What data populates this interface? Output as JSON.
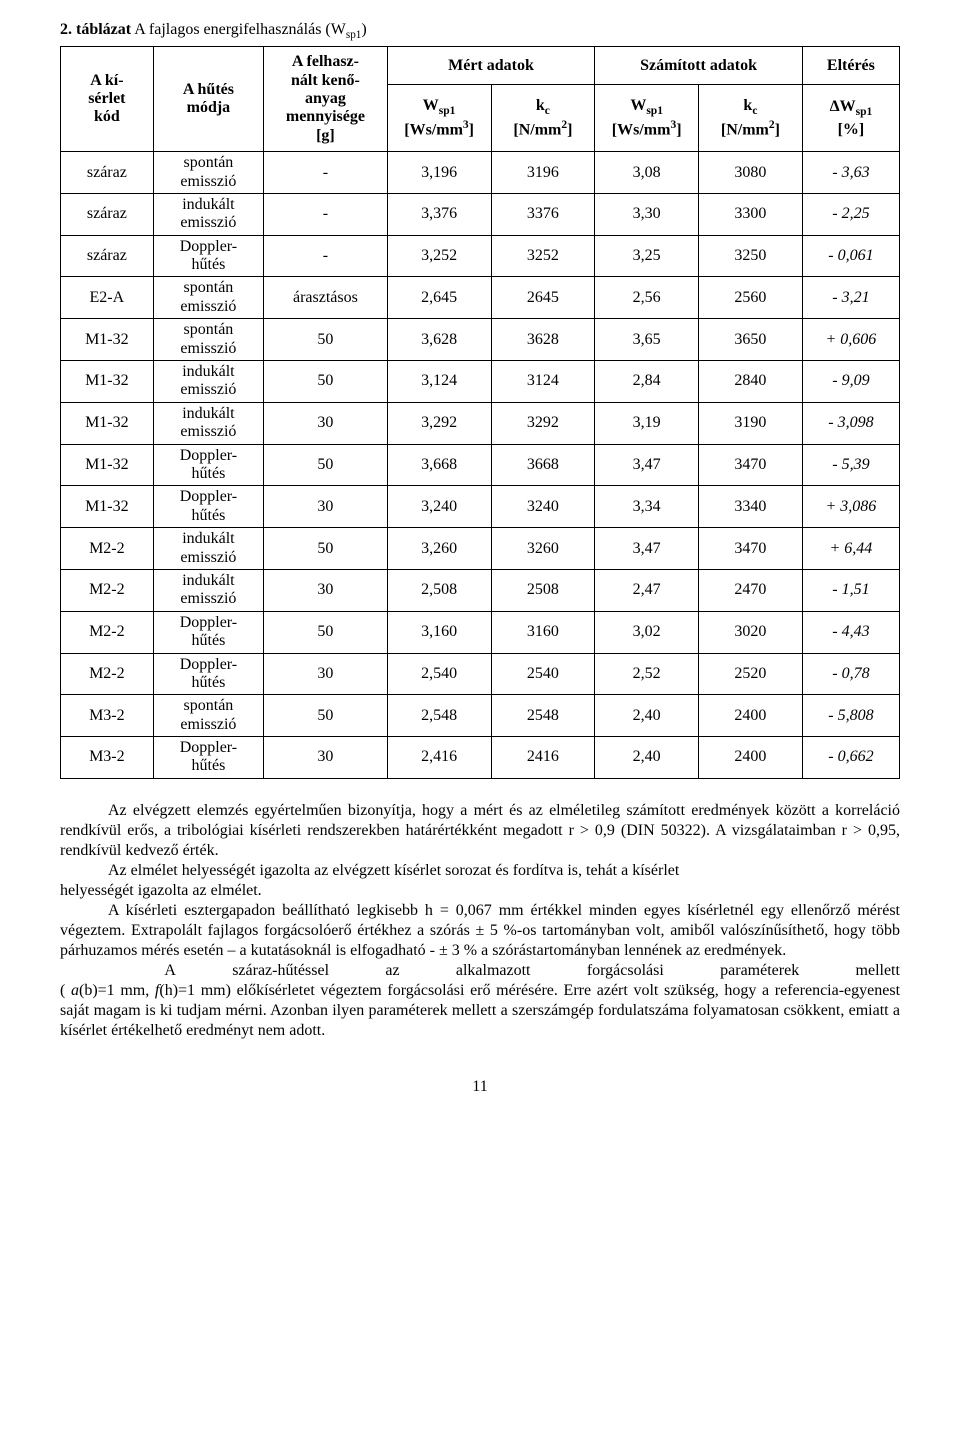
{
  "caption": {
    "label": "2. táblázat",
    "text": " A fajlagos energifelhasználás (W",
    "sub": "sp1",
    "tail": ")"
  },
  "header": {
    "col0": "A kí-\nsérlet\nkód",
    "col1": "A hűtés\nmódja",
    "col2": "A felhasz-\nnált kenő-\nanyag\nmennyisége\n[g]",
    "group_a": "Mért adatok",
    "group_b": "Számított adatok",
    "group_c": "Eltérés",
    "wsp1": "W",
    "wsp1_sub": "sp1",
    "wsp1_unit_open": "[Ws/mm",
    "wsp1_unit_sup": "3",
    "wsp1_unit_close": "]",
    "kc": "k",
    "kc_sub": "c",
    "kc_unit_open": "[N/mm",
    "kc_unit_sup": "2",
    "kc_unit_close": "]",
    "dwsp1_pre": "Δ",
    "dwsp1_unit": "[%]"
  },
  "rows": [
    {
      "code": "száraz",
      "method": "spontán\nemisszió",
      "qty": "-",
      "m_w": "3,196",
      "m_k": "3196",
      "c_w": "3,08",
      "c_k": "3080",
      "d": "- 3,63"
    },
    {
      "code": "száraz",
      "method": "indukált\nemisszió",
      "qty": "-",
      "m_w": "3,376",
      "m_k": "3376",
      "c_w": "3,30",
      "c_k": "3300",
      "d": "- 2,25"
    },
    {
      "code": "száraz",
      "method": "Doppler-\nhűtés",
      "qty": "-",
      "m_w": "3,252",
      "m_k": "3252",
      "c_w": "3,25",
      "c_k": "3250",
      "d": "- 0,061"
    },
    {
      "code": "E2-A",
      "method": "spontán\nemisszió",
      "qty": "árasztásos",
      "m_w": "2,645",
      "m_k": "2645",
      "c_w": "2,56",
      "c_k": "2560",
      "d": "- 3,21"
    },
    {
      "code": "M1-32",
      "method": "spontán\nemisszió",
      "qty": "50",
      "m_w": "3,628",
      "m_k": "3628",
      "c_w": "3,65",
      "c_k": "3650",
      "d": "+ 0,606"
    },
    {
      "code": "M1-32",
      "method": "indukált\nemisszió",
      "qty": "50",
      "m_w": "3,124",
      "m_k": "3124",
      "c_w": "2,84",
      "c_k": "2840",
      "d": "- 9,09"
    },
    {
      "code": "M1-32",
      "method": "indukált\nemisszió",
      "qty": "30",
      "m_w": "3,292",
      "m_k": "3292",
      "c_w": "3,19",
      "c_k": "3190",
      "d": "- 3,098"
    },
    {
      "code": "M1-32",
      "method": "Doppler-\nhűtés",
      "qty": "50",
      "m_w": "3,668",
      "m_k": "3668",
      "c_w": "3,47",
      "c_k": "3470",
      "d": "- 5,39"
    },
    {
      "code": "M1-32",
      "method": "Doppler-\nhűtés",
      "qty": "30",
      "m_w": "3,240",
      "m_k": "3240",
      "c_w": "3,34",
      "c_k": "3340",
      "d": "+ 3,086"
    },
    {
      "code": "M2-2",
      "method": "indukált\nemisszió",
      "qty": "50",
      "m_w": "3,260",
      "m_k": "3260",
      "c_w": "3,47",
      "c_k": "3470",
      "d": "+ 6,44"
    },
    {
      "code": "M2-2",
      "method": "indukált\nemisszió",
      "qty": "30",
      "m_w": "2,508",
      "m_k": "2508",
      "c_w": "2,47",
      "c_k": "2470",
      "d": "- 1,51"
    },
    {
      "code": "M2-2",
      "method": "Doppler-\nhűtés",
      "qty": "50",
      "m_w": "3,160",
      "m_k": "3160",
      "c_w": "3,02",
      "c_k": "3020",
      "d": "- 4,43"
    },
    {
      "code": "M2-2",
      "method": "Doppler-\nhűtés",
      "qty": "30",
      "m_w": "2,540",
      "m_k": "2540",
      "c_w": "2,52",
      "c_k": "2520",
      "d": "- 0,78"
    },
    {
      "code": "M3-2",
      "method": "spontán\nemisszió",
      "qty": "50",
      "m_w": "2,548",
      "m_k": "2548",
      "c_w": "2,40",
      "c_k": "2400",
      "d": "- 5,808"
    },
    {
      "code": "M3-2",
      "method": "Doppler-\nhűtés",
      "qty": "30",
      "m_w": "2,416",
      "m_k": "2416",
      "c_w": "2,40",
      "c_k": "2400",
      "d": "- 0,662"
    }
  ],
  "paragraphs": {
    "p1": "Az elvégzett elemzés egyértelműen bizonyítja, hogy a mért és az elméletileg számított eredmények között a korreláció rendkívül erős, a tribológiai kísérleti rendszerekben határértékként megadott r > 0,9 (DIN 50322). A vizsgálataimban r > 0,95, rendkívül kedvező érték.",
    "p2a": "Az elmélet helyességét igazolta az elvégzett kísérlet sorozat és fordítva is, tehát a kísérlet",
    "p2b": "helyességét igazolta az elmélet.",
    "p3": "A kísérleti esztergapadon beállítható legkisebb h = 0,067 mm értékkel minden egyes kísérletnél egy ellenőrző mérést végeztem. Extrapolált fajlagos forgácsolóerő értékhez a szórás ± 5 %-os tartományban volt, amiből valószínűsíthető, hogy több párhuzamos mérés esetén – a kutatásoknál is elfogadható - ± 3 % a szórástartományban lennének az eredmények.",
    "p4_a": "A",
    "p4_b": "száraz-hűtéssel",
    "p4_c": "az",
    "p4_d": "alkalmazott",
    "p4_e": "forgácsolási",
    "p4_f": "paraméterek",
    "p4_g": "mellett",
    "p4_prefix": "( ",
    "p4_ab_a": "a",
    "p4_ab_b": "(b)",
    "p4_mid": "=1 mm, ",
    "p4_fh_f": "f",
    "p4_fh_h": "(h)",
    "p4_tail": "=1 mm) előkísérletet végeztem forgácsolási erő mérésére. Erre azért volt szükség, hogy a referencia-egyenest saját magam is ki tudjam mérni. Azonban ilyen paraméterek mellett a szerszámgép fordulatszáma folyamatosan csökkent, emiatt a kísérlet értékelhető eredményt nem adott."
  },
  "pagenum": "11"
}
